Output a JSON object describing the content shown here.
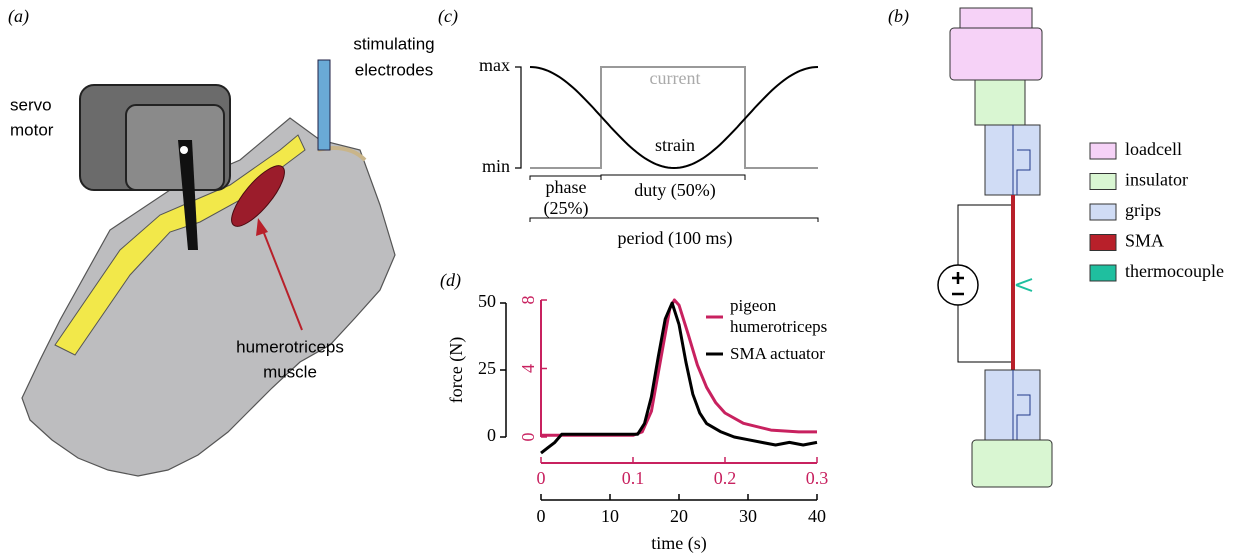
{
  "figure": {
    "panel_a": {
      "label": "(a)",
      "servo_label": [
        "servo",
        "motor"
      ],
      "electrode_label": [
        "stimulating",
        "electrodes"
      ],
      "muscle_label": [
        "humerotriceps",
        "muscle"
      ]
    },
    "panel_b": {
      "label": "(b)",
      "legend": [
        {
          "name": "loadcell",
          "color": "#f6d2f7"
        },
        {
          "name": "insulator",
          "color": "#d9f6d2"
        },
        {
          "name": "grips",
          "color": "#d0dcf5"
        },
        {
          "name": "SMA",
          "color": "#b8202a"
        },
        {
          "name": "thermocouple",
          "color": "#1fbf9f"
        }
      ]
    },
    "panel_c": {
      "label": "(c)",
      "max_label": "max",
      "min_label": "min",
      "current_label": "current",
      "strain_label": "strain",
      "phase_label": [
        "phase",
        "(25%)"
      ],
      "duty_label": "duty (50%)",
      "period_label": "period (100 ms)"
    },
    "panel_d_label": "(d)"
  },
  "chart_data": {
    "type": "line",
    "xlabel": "time (s)",
    "ylabel": "force (N)",
    "xlim": [
      0,
      40
    ],
    "xticks": [
      0,
      10,
      20,
      30,
      40
    ],
    "x2lim": [
      0,
      0.3
    ],
    "x2ticks": [
      0,
      0.1,
      0.2,
      0.3
    ],
    "ylim": [
      0,
      50
    ],
    "yticks": [
      0,
      25,
      50
    ],
    "y2lim": [
      0,
      8
    ],
    "y2ticks": [
      0,
      4,
      8
    ],
    "axis2_color": "#c8215f",
    "series": [
      {
        "name": "pigeon humerotriceps",
        "color": "#c8215f",
        "axis": "y2",
        "x_axis": "x2",
        "x": [
          0,
          0.05,
          0.1,
          0.11,
          0.12,
          0.13,
          0.14,
          0.145,
          0.15,
          0.16,
          0.17,
          0.18,
          0.19,
          0.2,
          0.22,
          0.25,
          0.28,
          0.3
        ],
        "values": [
          0.1,
          0.1,
          0.1,
          0.3,
          1.5,
          4.5,
          7.5,
          8,
          7.7,
          6,
          4.2,
          2.9,
          2,
          1.4,
          0.8,
          0.4,
          0.3,
          0.3
        ]
      },
      {
        "name": "SMA actuator",
        "color": "#000000",
        "x": [
          0,
          1,
          2,
          3,
          4,
          6,
          8,
          10,
          12,
          14,
          15,
          16,
          17,
          18,
          19,
          20,
          21,
          22,
          23,
          24,
          26,
          28,
          30,
          32,
          34,
          36,
          38,
          40
        ],
        "values": [
          -6,
          -4,
          -2,
          1,
          1,
          1,
          1,
          1,
          1,
          1,
          5,
          15,
          30,
          44,
          50,
          42,
          28,
          16,
          9,
          5,
          2,
          0,
          -1,
          -2,
          -3,
          -2,
          -3,
          -2
        ]
      }
    ]
  }
}
